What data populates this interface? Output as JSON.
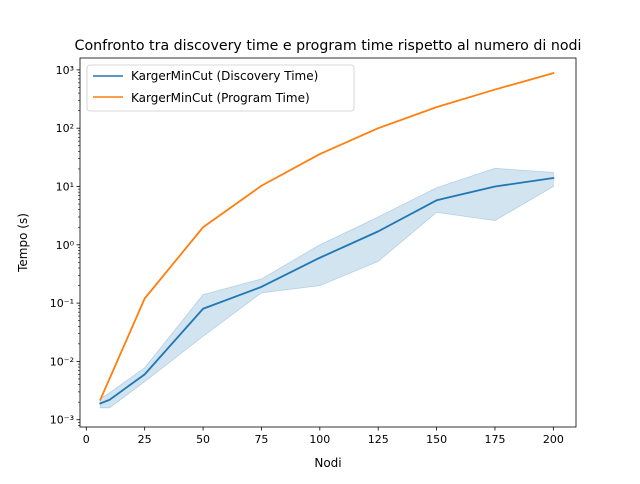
{
  "chart_data": {
    "type": "line",
    "title": "Confronto tra discovery time e program time rispetto al numero di nodi",
    "xlabel": "Nodi",
    "ylabel": "Tempo (s)",
    "xlim": [
      -2.7,
      209.7
    ],
    "ylim": [
      0.00075,
      1600
    ],
    "yscale": "log",
    "grid": false,
    "legend_position": "top-left",
    "xticks": [
      0,
      25,
      50,
      75,
      100,
      125,
      150,
      175,
      200
    ],
    "yticks": [
      {
        "value": 0.001,
        "label": "10⁻³"
      },
      {
        "value": 0.01,
        "label": "10⁻²"
      },
      {
        "value": 0.1,
        "label": "10⁻¹"
      },
      {
        "value": 1,
        "label": "10⁰"
      },
      {
        "value": 10,
        "label": "10¹"
      },
      {
        "value": 100,
        "label": "10²"
      },
      {
        "value": 1000,
        "label": "10³"
      }
    ],
    "series": [
      {
        "name": "KargerMinCut (Discovery Time)",
        "color": "#1f77b4",
        "x": [
          6,
          10,
          25,
          50,
          75,
          100,
          125,
          150,
          175,
          200
        ],
        "y": [
          0.0019,
          0.0022,
          0.006,
          0.08,
          0.19,
          0.6,
          1.7,
          5.8,
          10.0,
          14.0
        ],
        "band_lower": [
          0.0016,
          0.0016,
          0.0045,
          0.027,
          0.15,
          0.2,
          0.52,
          3.6,
          2.6,
          10.0
        ],
        "band_upper": [
          0.0023,
          0.0029,
          0.0078,
          0.14,
          0.26,
          1.0,
          3.0,
          9.5,
          20.5,
          17.5
        ]
      },
      {
        "name": "KargerMinCut (Program Time)",
        "color": "#ff7f0e",
        "x": [
          6,
          25,
          50,
          75,
          100,
          125,
          150,
          175,
          200
        ],
        "y": [
          0.0022,
          0.12,
          2.0,
          10.3,
          36.0,
          100.0,
          230.0,
          460.0,
          880.0
        ]
      }
    ]
  }
}
